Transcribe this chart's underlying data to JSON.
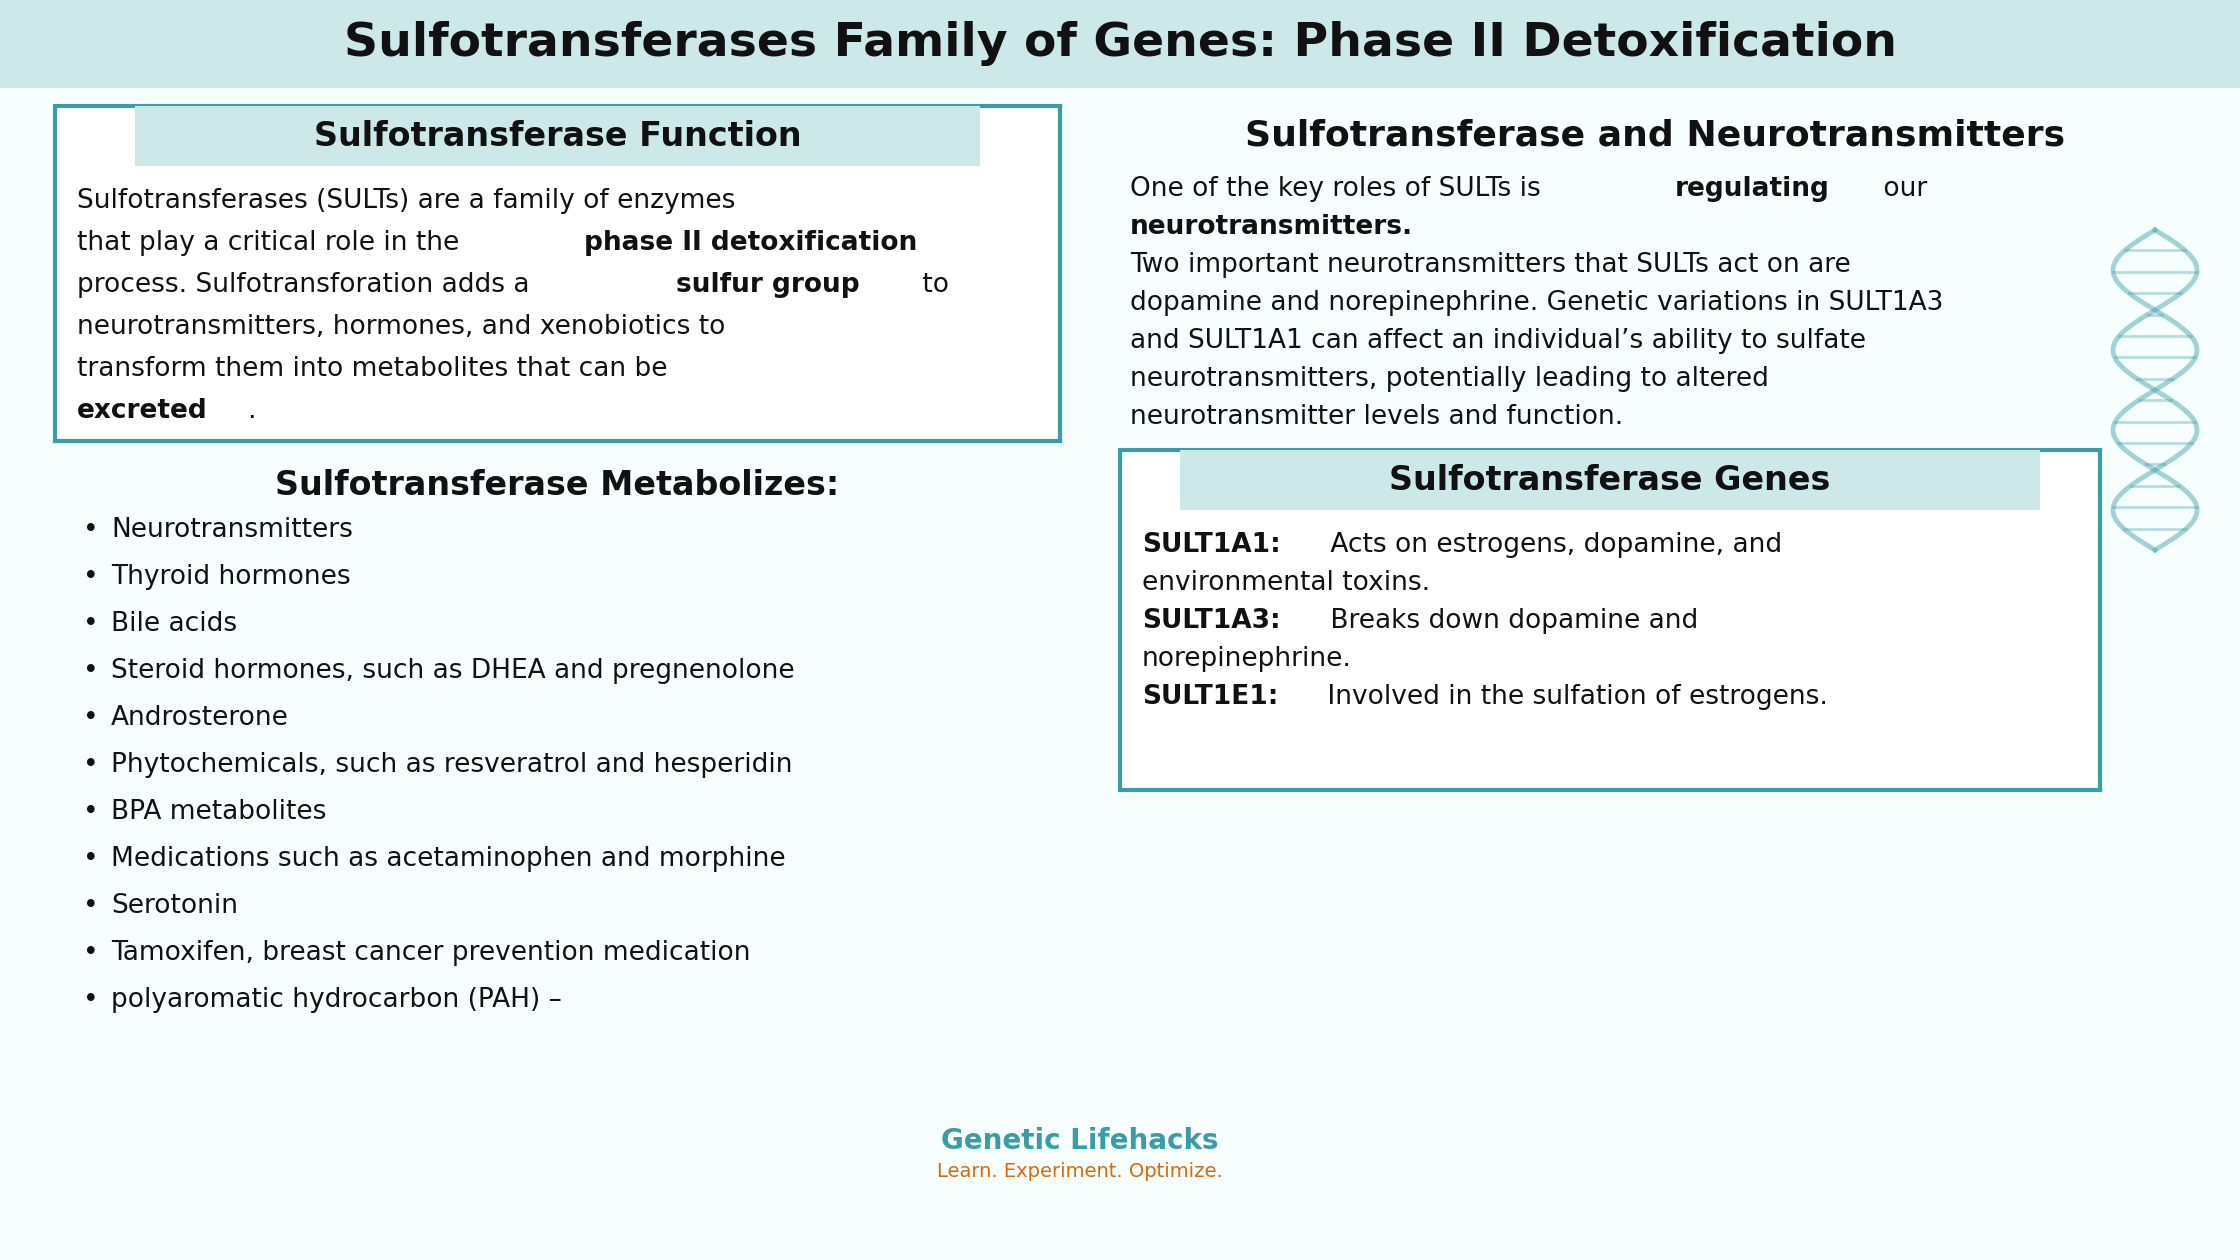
{
  "title": "Sulfotransferases Family of Genes: Phase II Detoxification",
  "title_bg": "#cce8e8",
  "main_bg": "#f7fefe",
  "teal_color": "#3a9da5",
  "teal_light": "#cce8e8",
  "text_color": "#111111",
  "func_title": "Sulfotransferase Function",
  "func_lines": [
    [
      {
        "t": "Sulfotransferases (SULTs) are a family of enzymes",
        "b": false
      }
    ],
    [
      {
        "t": "that play a critical role in the ",
        "b": false
      },
      {
        "t": "phase II detoxification",
        "b": true
      }
    ],
    [
      {
        "t": "process. Sulfotransforation adds a ",
        "b": false
      },
      {
        "t": "sulfur group",
        "b": true
      },
      {
        "t": " to",
        "b": false
      }
    ],
    [
      {
        "t": "neurotransmitters, hormones, and xenobiotics to",
        "b": false
      }
    ],
    [
      {
        "t": "transform them into metabolites that can be",
        "b": false
      }
    ],
    [
      {
        "t": "excreted",
        "b": true
      },
      {
        "t": ".",
        "b": false
      }
    ]
  ],
  "metab_title": "Sulfotransferase Metabolizes:",
  "metab_items": [
    "Neurotransmitters",
    "Thyroid hormones",
    "Bile acids",
    "Steroid hormones, such as DHEA and pregnenolone",
    "Androsterone",
    "Phytochemicals, such as resveratrol and hesperidin",
    "BPA metabolites",
    "Medications such as acetaminophen and morphine",
    "Serotonin",
    "Tamoxifen, breast cancer prevention medication",
    "polyaromatic hydrocarbon (PAH) –"
  ],
  "neuro_title": "Sulfotransferase and Neurotransmitters",
  "neuro_lines": [
    [
      {
        "t": "One of the key roles of SULTs is ",
        "b": false
      },
      {
        "t": "regulating",
        "b": true
      },
      {
        "t": " our",
        "b": false
      }
    ],
    [
      {
        "t": "neurotransmitters.",
        "b": true
      }
    ],
    [
      {
        "t": "Two important neurotransmitters that SULTs act on are",
        "b": false
      }
    ],
    [
      {
        "t": "dopamine and norepinephrine. Genetic variations in SULT1A3",
        "b": false
      }
    ],
    [
      {
        "t": "and SULT1A1 can affect an individual’s ability to sulfate",
        "b": false
      }
    ],
    [
      {
        "t": "neurotransmitters, potentially leading to altered",
        "b": false
      }
    ],
    [
      {
        "t": "neurotransmitter levels and function.",
        "b": false
      }
    ]
  ],
  "genes_title": "Sulfotransferase Genes",
  "genes_lines": [
    [
      {
        "t": "SULT1A1:",
        "b": true
      },
      {
        "t": " Acts on estrogens, dopamine, and",
        "b": false
      }
    ],
    [
      {
        "t": "environmental toxins.",
        "b": false
      }
    ],
    [
      {
        "t": "SULT1A3:",
        "b": true
      },
      {
        "t": " Breaks down dopamine and",
        "b": false
      }
    ],
    [
      {
        "t": "norepinephrine.",
        "b": false
      }
    ],
    [
      {
        "t": "SULT1E1:",
        "b": true
      },
      {
        "t": " Involved in the sulfation of estrogens.",
        "b": false
      }
    ]
  ],
  "watermark_line1": "Genetic Lifehacks",
  "watermark_line2": "Learn. Experiment. Optimize.",
  "watermark_color1": "#3a9da5",
  "watermark_color2": "#d46a10"
}
